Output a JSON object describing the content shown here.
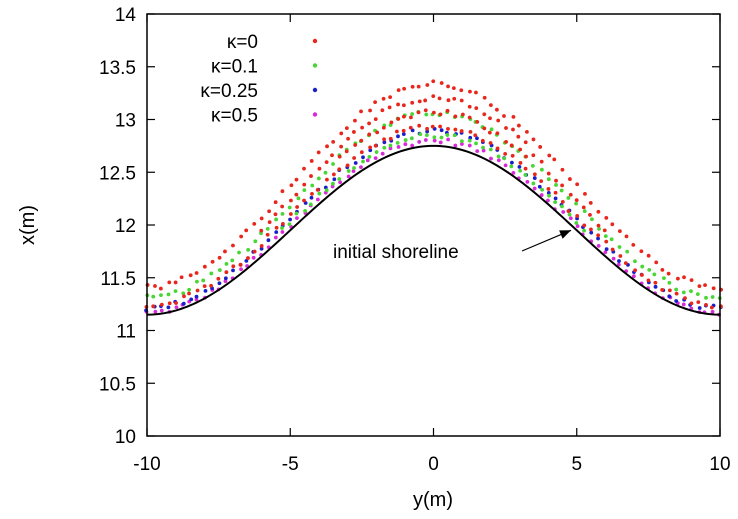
{
  "chart_data": {
    "type": "scatter",
    "title": "",
    "xlabel": "y(m)",
    "ylabel": "x(m)",
    "xlim": [
      -10,
      10
    ],
    "ylim": [
      10,
      14
    ],
    "xticks": [
      -10,
      -5,
      0,
      5,
      10
    ],
    "xtick_labels": [
      "-10",
      "-5",
      "0",
      "5",
      "10"
    ],
    "yticks": [
      10,
      10.5,
      11,
      11.5,
      12,
      12.5,
      13,
      13.5,
      14
    ],
    "ytick_labels": [
      "10",
      "10.5",
      "11",
      "11.5",
      "12",
      "12.5",
      "13",
      "13.5",
      "14"
    ],
    "grid": false,
    "legend_position": "top-left",
    "initial_shoreline": {
      "label": "initial shoreline",
      "color": "#000000",
      "baseline": 11.15,
      "amplitude": 1.6,
      "annotation_point": {
        "x": 4.8,
        "y": 11.95
      }
    },
    "series": [
      {
        "name": "κ=0",
        "color": "#e8261c",
        "offset_peak": 0.58,
        "offset_base": 0.25
      },
      {
        "name": "κ=0.1",
        "color": "#48d634",
        "offset_peak": 0.3,
        "offset_base": 0.15
      },
      {
        "name": "κ=0.25",
        "color": "#1b1fc9",
        "offset_peak": 0.14,
        "offset_base": 0.05
      },
      {
        "name": "κ=0.5",
        "color": "#d92ad9",
        "offset_peak": 0.04,
        "offset_base": 0.01
      }
    ]
  }
}
